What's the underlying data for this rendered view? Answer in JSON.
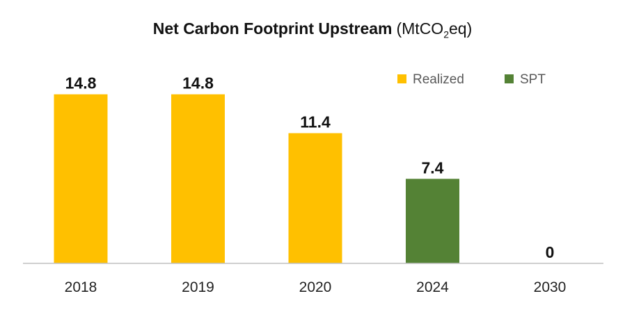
{
  "chart_data": {
    "type": "bar",
    "title": {
      "main": "Net Carbon Footprint Upstream",
      "unit_prefix": "(MtCO",
      "unit_subscript": "2",
      "unit_suffix": "eq)"
    },
    "categories": [
      "2018",
      "2019",
      "2020",
      "2024",
      "2030"
    ],
    "values": [
      14.8,
      14.8,
      11.4,
      7.4,
      0
    ],
    "value_labels": [
      "14.8",
      "14.8",
      "11.4",
      "7.4",
      "0"
    ],
    "bar_series": [
      "Realized",
      "Realized",
      "Realized",
      "SPT",
      "SPT"
    ],
    "series": [
      {
        "name": "Realized",
        "color": "#FFC000"
      },
      {
        "name": "SPT",
        "color": "#548235"
      }
    ],
    "xlabel": "",
    "ylabel": "",
    "ylim": [
      0,
      16
    ],
    "grid": false,
    "legend_position": "top-right"
  }
}
